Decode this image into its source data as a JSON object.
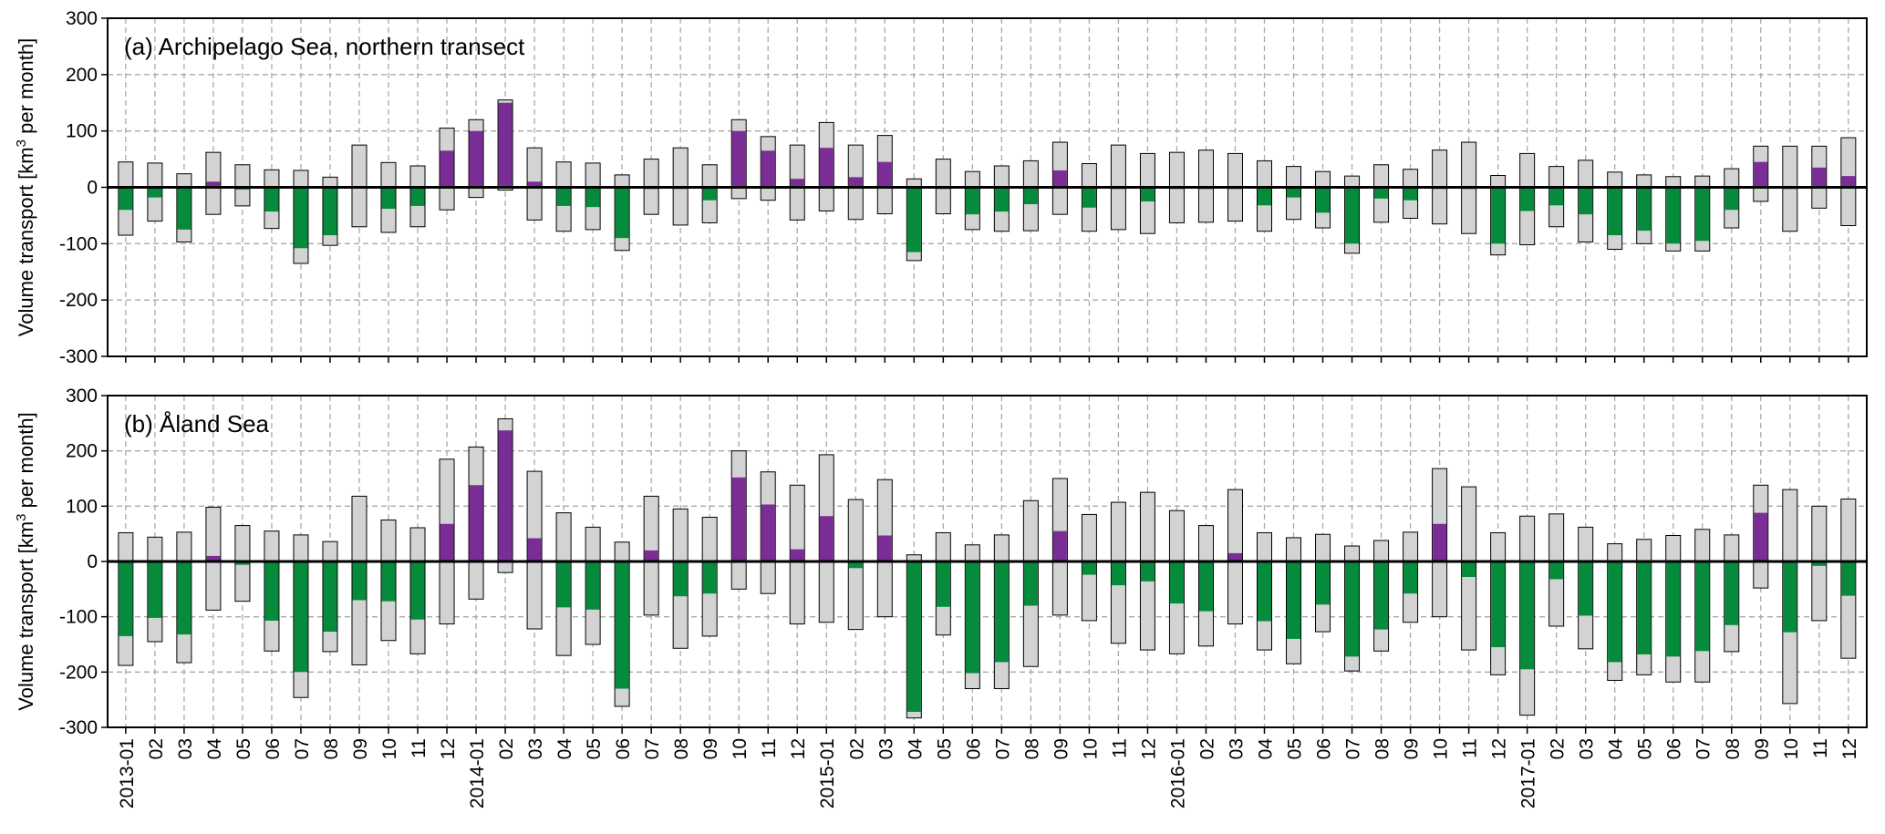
{
  "colors": {
    "inflow": "#7b2d96",
    "outflow": "#068a3b",
    "range": "#d3d3d3"
  },
  "x_labels": [
    "2013-01",
    "02",
    "03",
    "04",
    "05",
    "06",
    "07",
    "08",
    "09",
    "10",
    "11",
    "12",
    "2014-01",
    "02",
    "03",
    "04",
    "05",
    "06",
    "07",
    "08",
    "09",
    "10",
    "11",
    "12",
    "2015-01",
    "02",
    "03",
    "04",
    "05",
    "06",
    "07",
    "08",
    "09",
    "10",
    "11",
    "12",
    "2016-01",
    "02",
    "03",
    "04",
    "05",
    "06",
    "07",
    "08",
    "09",
    "10",
    "11",
    "12",
    "2017-01",
    "02",
    "03",
    "04",
    "05",
    "06",
    "07",
    "08",
    "09",
    "10",
    "11",
    "12"
  ],
  "chart_data": [
    {
      "type": "bar",
      "title": "(a) Archipelago Sea, northern transect",
      "ylabel_pre": "Volume transport [km",
      "ylabel_sup": "3",
      "ylabel_post": " per month]",
      "ylim": [
        -300,
        300
      ],
      "yticks": [
        300,
        200,
        100,
        0,
        -100,
        -200,
        -300
      ],
      "grid": true,
      "gross_in": [
        45,
        43,
        24,
        62,
        40,
        31,
        30,
        18,
        75,
        44,
        38,
        105,
        120,
        155,
        70,
        45,
        43,
        22,
        50,
        70,
        40,
        120,
        90,
        75,
        115,
        75,
        92,
        15,
        50,
        28,
        38,
        47,
        80,
        42,
        75,
        60,
        62,
        66,
        60,
        47,
        37,
        28,
        20,
        40,
        32,
        66,
        80,
        21,
        60,
        37,
        48,
        27,
        22,
        19,
        20,
        33,
        73,
        73,
        73,
        88
      ],
      "gross_out": [
        -85,
        -60,
        -97,
        -48,
        -33,
        -73,
        -135,
        -103,
        -70,
        -80,
        -70,
        -40,
        -18,
        -5,
        -58,
        -78,
        -75,
        -112,
        -48,
        -67,
        -63,
        -20,
        -23,
        -58,
        -42,
        -57,
        -47,
        -130,
        -47,
        -75,
        -78,
        -77,
        -48,
        -78,
        -75,
        -82,
        -63,
        -62,
        -60,
        -78,
        -57,
        -72,
        -117,
        -62,
        -55,
        -65,
        -82,
        -120,
        -102,
        -70,
        -97,
        -110,
        -100,
        -113,
        -113,
        -72,
        -25,
        -78,
        -37,
        -68
      ],
      "net": [
        -40,
        -18,
        -75,
        10,
        -4,
        -43,
        -108,
        -85,
        -2,
        -38,
        -33,
        65,
        100,
        150,
        10,
        -33,
        -35,
        -90,
        -3,
        -3,
        -23,
        100,
        65,
        15,
        70,
        18,
        45,
        -115,
        -3,
        -48,
        -43,
        -30,
        30,
        -36,
        -3,
        -25,
        -3,
        -3,
        -3,
        -32,
        -18,
        -45,
        -100,
        -20,
        -23,
        -3,
        -3,
        -100,
        -42,
        -32,
        -48,
        -85,
        -77,
        -100,
        -95,
        -40,
        45,
        -3,
        35,
        20
      ]
    },
    {
      "type": "bar",
      "title": "(b) Åland Sea",
      "ylabel_pre": "Volume transport [km",
      "ylabel_sup": "3",
      "ylabel_post": " per month]",
      "ylim": [
        -300,
        300
      ],
      "yticks": [
        300,
        200,
        100,
        0,
        -100,
        -200,
        -300
      ],
      "grid": true,
      "gross_in": [
        52,
        44,
        53,
        98,
        65,
        55,
        48,
        36,
        118,
        75,
        61,
        185,
        207,
        258,
        163,
        88,
        62,
        35,
        118,
        95,
        80,
        200,
        162,
        138,
        193,
        112,
        148,
        12,
        52,
        30,
        48,
        110,
        150,
        85,
        107,
        125,
        92,
        65,
        130,
        52,
        43,
        49,
        28,
        38,
        53,
        168,
        135,
        52,
        82,
        86,
        62,
        32,
        40,
        47,
        58,
        48,
        138,
        130,
        100,
        113
      ],
      "gross_out": [
        -188,
        -145,
        -183,
        -88,
        -72,
        -162,
        -246,
        -163,
        -187,
        -143,
        -167,
        -113,
        -68,
        -20,
        -122,
        -170,
        -150,
        -262,
        -97,
        -157,
        -135,
        -50,
        -58,
        -113,
        -110,
        -123,
        -100,
        -283,
        -133,
        -230,
        -230,
        -190,
        -97,
        -107,
        -148,
        -160,
        -167,
        -153,
        -113,
        -160,
        -185,
        -127,
        -198,
        -162,
        -110,
        -100,
        -160,
        -205,
        -278,
        -117,
        -158,
        -215,
        -205,
        -218,
        -218,
        -163,
        -48,
        -257,
        -107,
        -175
      ],
      "net": [
        -135,
        -102,
        -132,
        10,
        -6,
        -107,
        -200,
        -127,
        -70,
        -72,
        -105,
        68,
        138,
        237,
        42,
        -83,
        -87,
        -230,
        20,
        -63,
        -58,
        152,
        103,
        22,
        82,
        -12,
        47,
        -272,
        -82,
        -202,
        -182,
        -80,
        55,
        -24,
        -43,
        -36,
        -76,
        -90,
        15,
        -108,
        -140,
        -78,
        -172,
        -123,
        -58,
        68,
        -28,
        -155,
        -195,
        -32,
        -98,
        -182,
        -168,
        -172,
        -162,
        -115,
        88,
        -128,
        -8,
        -62
      ]
    }
  ]
}
